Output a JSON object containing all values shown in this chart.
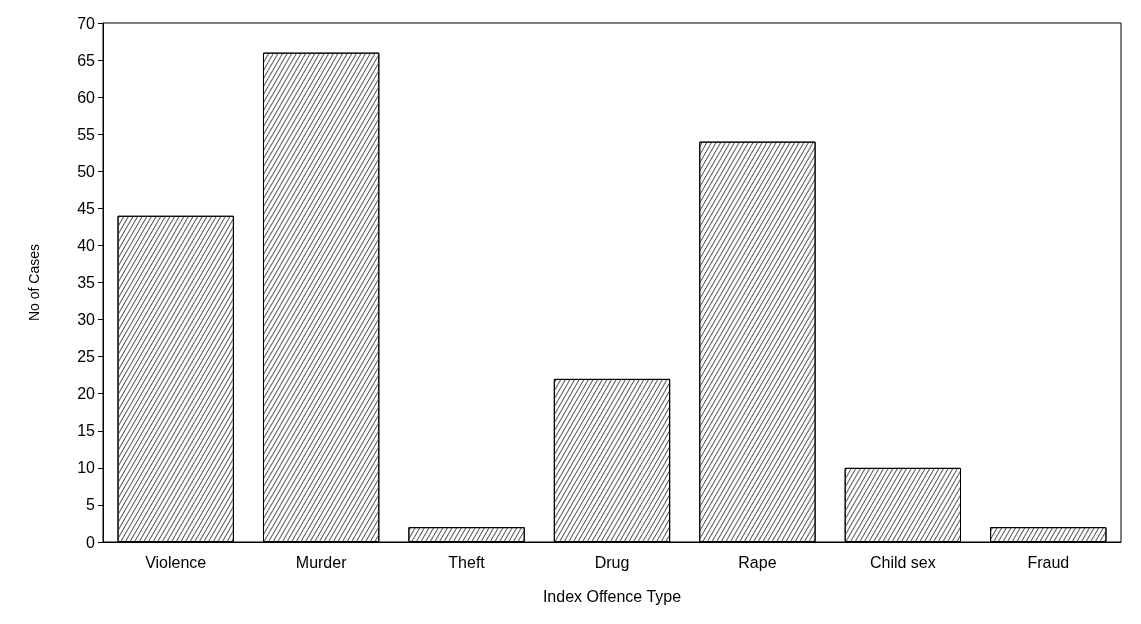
{
  "chart_data": {
    "type": "bar",
    "xlabel": "Index Offence Type",
    "ylabel": "No of Cases",
    "categories": [
      "Violence",
      "Murder",
      "Theft",
      "Drug",
      "Rape",
      "Child sex",
      "Fraud"
    ],
    "values": [
      44,
      66,
      2,
      22,
      54,
      10,
      2
    ],
    "color": "#ffffff",
    "ylim": [
      0,
      70
    ],
    "yticks": [
      0,
      5,
      10,
      15,
      20,
      25,
      30,
      35,
      40,
      45,
      50,
      55,
      60,
      65,
      70
    ],
    "grid": false
  }
}
